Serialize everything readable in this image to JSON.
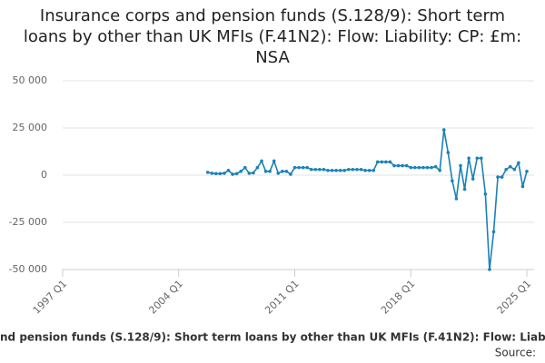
{
  "chart_data": {
    "type": "line",
    "title": "Insurance corps and pension funds (S.128/9): Short term loans by other than UK MFIs (F.41N2): Flow: Liability: CP: £m: NSA",
    "source": "Source:",
    "categories": [
      "1997 Q1",
      "1997 Q2",
      "1997 Q3",
      "1997 Q4",
      "1998 Q1",
      "1998 Q2",
      "1998 Q3",
      "1998 Q4",
      "1999 Q1",
      "1999 Q2",
      "1999 Q3",
      "1999 Q4",
      "2000 Q1",
      "2000 Q2",
      "2000 Q3",
      "2000 Q4",
      "2001 Q1",
      "2001 Q2",
      "2001 Q3",
      "2001 Q4",
      "2002 Q1",
      "2002 Q2",
      "2002 Q3",
      "2002 Q4",
      "2003 Q1",
      "2003 Q2",
      "2003 Q3",
      "2003 Q4",
      "2004 Q1",
      "2004 Q2",
      "2004 Q3",
      "2004 Q4",
      "2005 Q1",
      "2005 Q2",
      "2005 Q3",
      "2005 Q4",
      "2006 Q1",
      "2006 Q2",
      "2006 Q3",
      "2006 Q4",
      "2007 Q1",
      "2007 Q2",
      "2007 Q3",
      "2007 Q4",
      "2008 Q1",
      "2008 Q2",
      "2008 Q3",
      "2008 Q4",
      "2009 Q1",
      "2009 Q2",
      "2009 Q3",
      "2009 Q4",
      "2010 Q1",
      "2010 Q2",
      "2010 Q3",
      "2010 Q4",
      "2011 Q1",
      "2011 Q2",
      "2011 Q3",
      "2011 Q4",
      "2012 Q1",
      "2012 Q2",
      "2012 Q3",
      "2012 Q4",
      "2013 Q1",
      "2013 Q2",
      "2013 Q3",
      "2013 Q4",
      "2014 Q1",
      "2014 Q2",
      "2014 Q3",
      "2014 Q4",
      "2015 Q1",
      "2015 Q2",
      "2015 Q3",
      "2015 Q4",
      "2016 Q1",
      "2016 Q2",
      "2016 Q3",
      "2016 Q4",
      "2017 Q1",
      "2017 Q2",
      "2017 Q3",
      "2017 Q4",
      "2018 Q1",
      "2018 Q2",
      "2018 Q3",
      "2018 Q4",
      "2019 Q1",
      "2019 Q2",
      "2019 Q3",
      "2019 Q4",
      "2020 Q1",
      "2020 Q2",
      "2020 Q3",
      "2020 Q4",
      "2021 Q1",
      "2021 Q2",
      "2021 Q3",
      "2021 Q4",
      "2022 Q1",
      "2022 Q2",
      "2022 Q3",
      "2022 Q4",
      "2023 Q1",
      "2023 Q2",
      "2023 Q3",
      "2023 Q4",
      "2024 Q1",
      "2024 Q2",
      "2024 Q3",
      "2024 Q4",
      "2025 Q1"
    ],
    "series": [
      {
        "name": "CP",
        "color": "#1a82b8",
        "values": [
          null,
          null,
          null,
          null,
          null,
          null,
          null,
          null,
          null,
          null,
          null,
          null,
          null,
          null,
          null,
          null,
          null,
          null,
          null,
          null,
          null,
          null,
          null,
          null,
          null,
          null,
          null,
          null,
          null,
          null,
          null,
          null,
          null,
          null,
          null,
          1500,
          1000,
          800,
          800,
          1000,
          2500,
          500,
          800,
          2000,
          4000,
          1000,
          1200,
          4000,
          7500,
          2000,
          2000,
          7500,
          1000,
          2000,
          2000,
          500,
          4000,
          4000,
          4000,
          4000,
          3000,
          3000,
          3000,
          3000,
          2500,
          2500,
          2500,
          2500,
          2500,
          3000,
          3000,
          3000,
          3000,
          2500,
          2500,
          2500,
          7000,
          7000,
          7000,
          7000,
          5000,
          5000,
          5000,
          5000,
          4000,
          4000,
          4000,
          4000,
          4000,
          4000,
          4500,
          2500,
          24000,
          12000,
          -3000,
          -12500,
          5000,
          -7500,
          9000,
          -2000,
          9000,
          9000,
          -10000,
          -50000,
          -30000,
          -1000,
          -1000,
          3000,
          4500,
          3000,
          6500,
          -6000,
          2000
        ]
      }
    ],
    "xticks": [
      "1997 Q1",
      "2004 Q1",
      "2011 Q1",
      "2018 Q1",
      "2025 Q1"
    ],
    "ylim": [
      -50000,
      50000
    ],
    "yticks": [
      {
        "value": -50000,
        "label": "-50 000"
      },
      {
        "value": -25000,
        "label": "-25 000"
      },
      0,
      {
        "value": 25000,
        "label": "25 000"
      },
      {
        "value": 50000,
        "label": "50 000"
      }
    ],
    "grid": true
  }
}
